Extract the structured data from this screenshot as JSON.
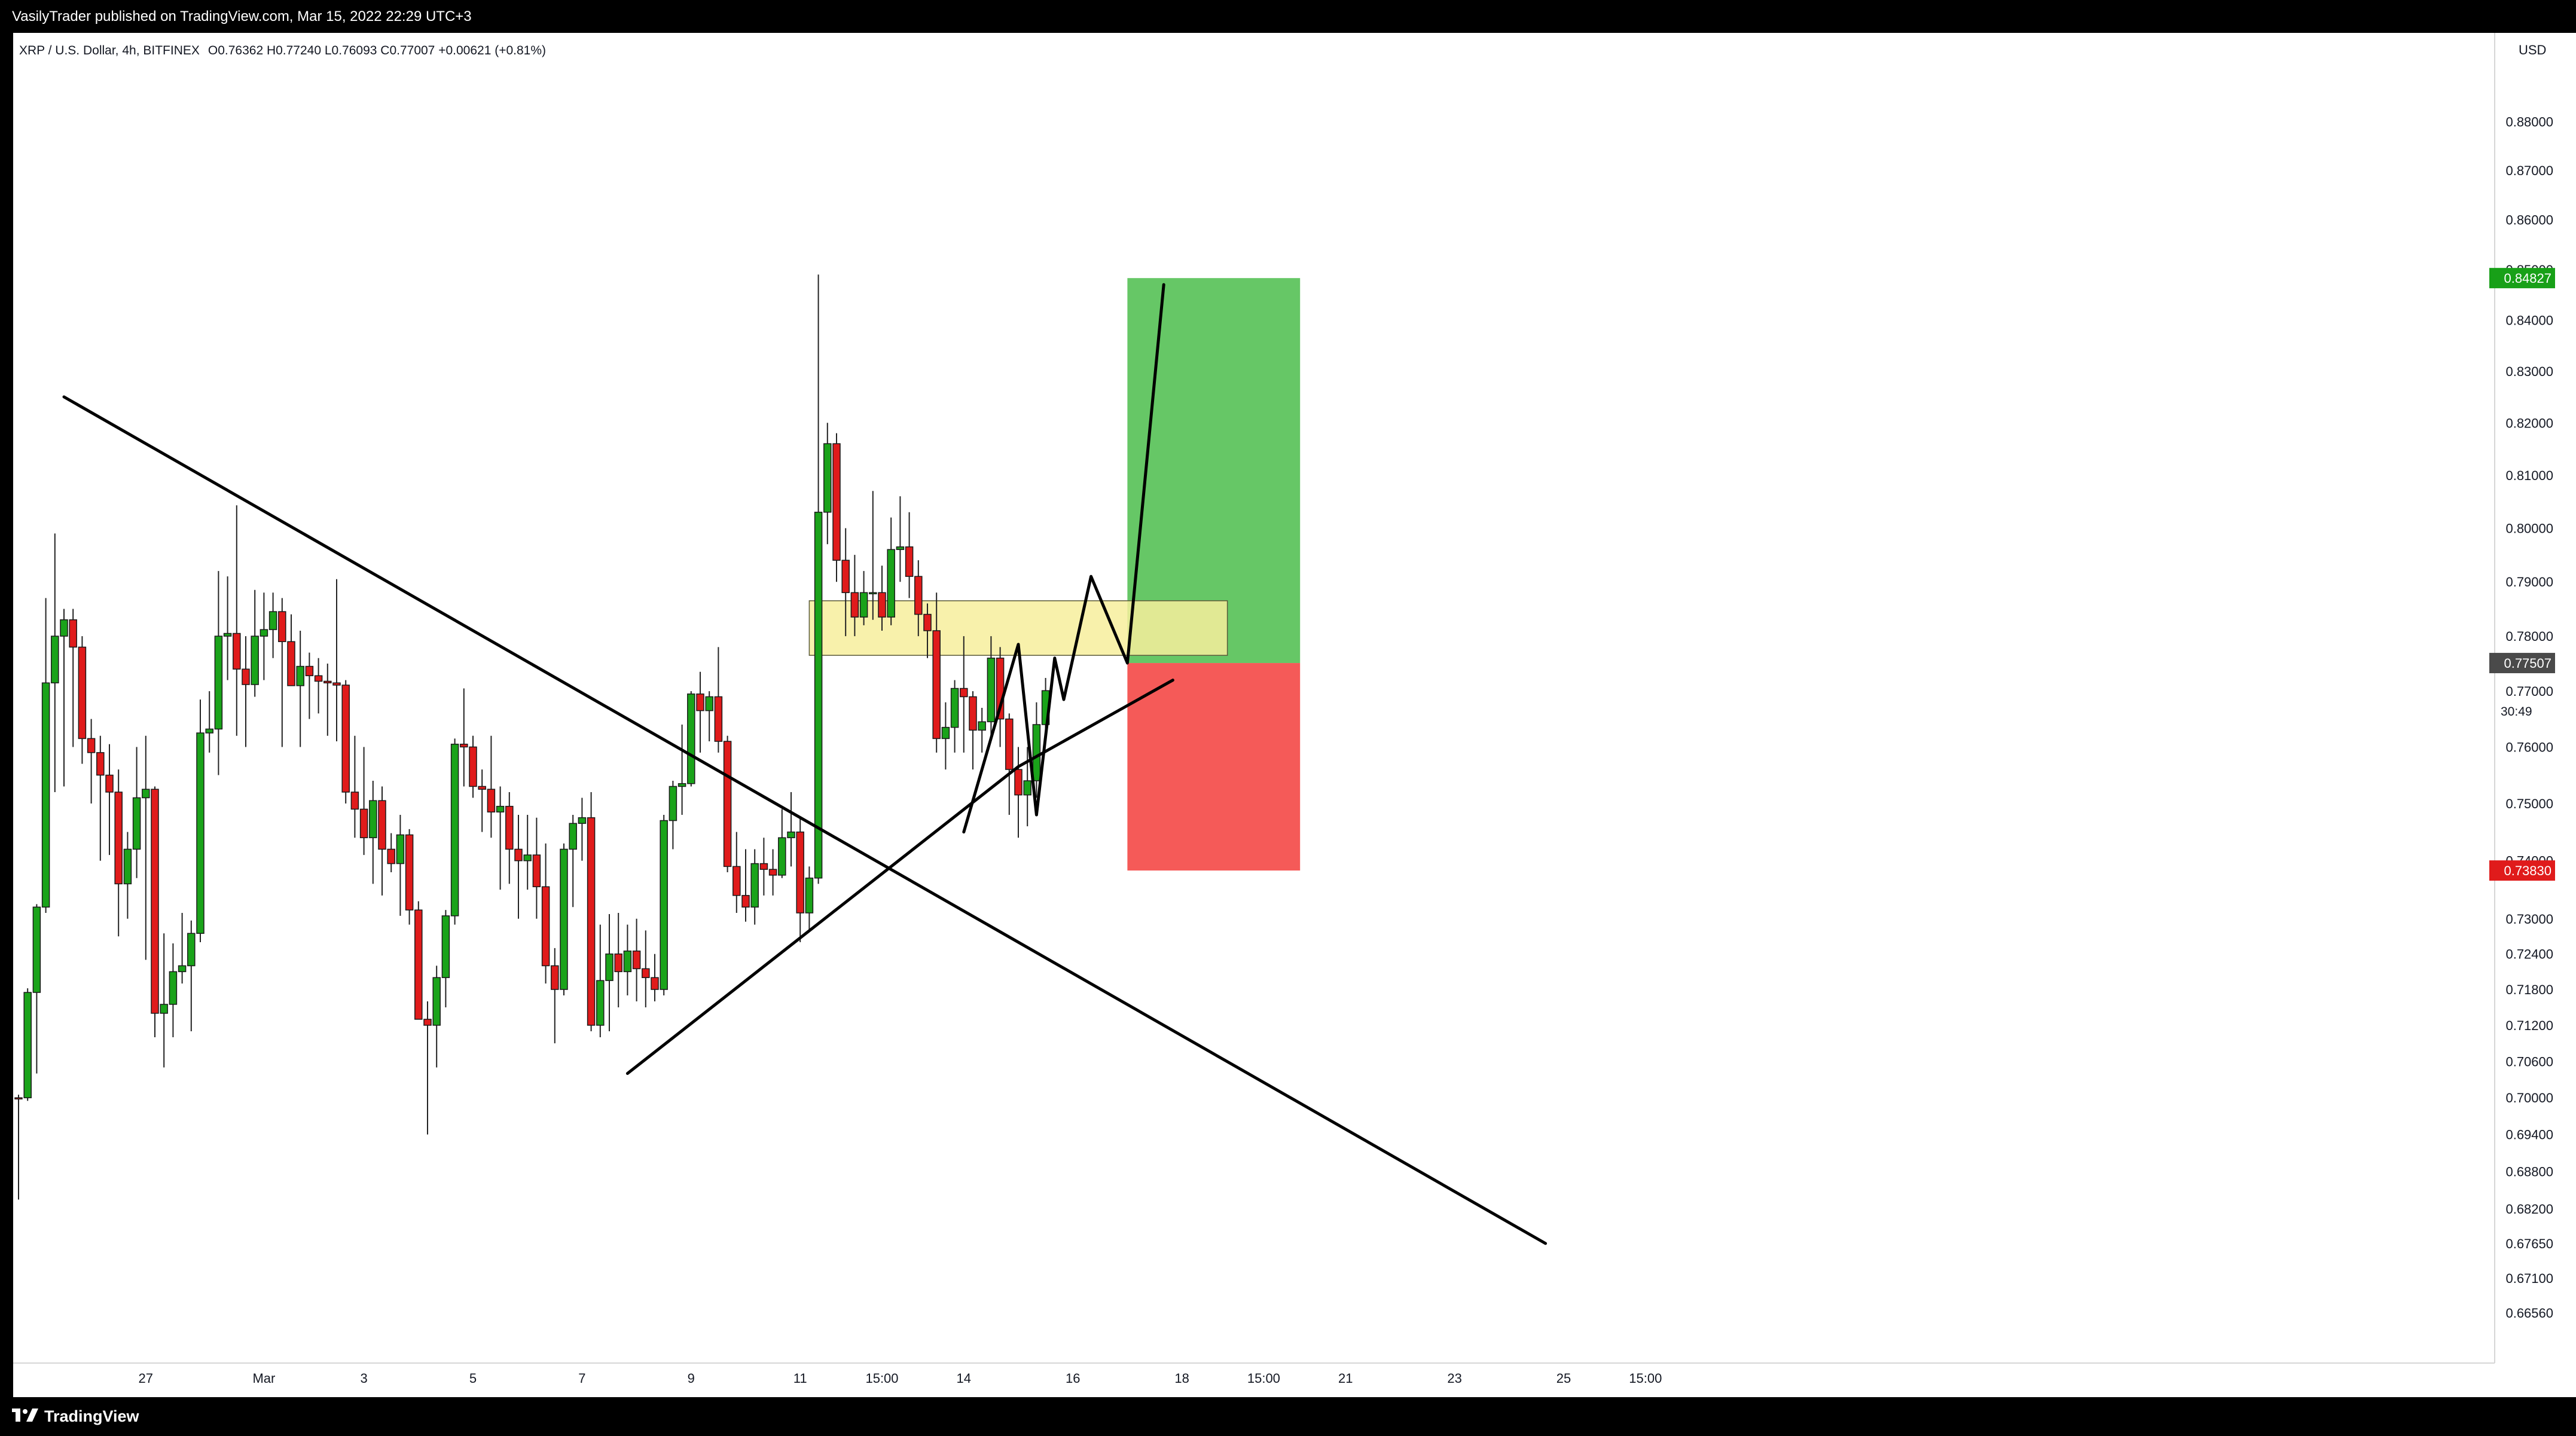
{
  "header": {
    "published_text": "VasilyTrader published on TradingView.com, Mar 15, 2022 22:29 UTC+3"
  },
  "footer": {
    "logo_text": "TradingView"
  },
  "chart_data": {
    "type": "candlestick",
    "title": "XRP / U.S. Dollar, 4h, BITFINEX",
    "ohlc_legend": "O0.76362  H0.77240  L0.76093  C0.77007  +0.00621 (+0.81%)",
    "currency_label": "USD",
    "y_scale": "log",
    "ylim": [
      0.6601,
      0.8956
    ],
    "y_ticks": [
      "0.88000",
      "0.87000",
      "0.86000",
      "0.85000",
      "0.84000",
      "0.83000",
      "0.82000",
      "0.81000",
      "0.80000",
      "0.79000",
      "0.78000",
      "0.77000",
      "0.76000",
      "0.75000",
      "0.74000",
      "0.73000",
      "0.72400",
      "0.71800",
      "0.71200",
      "0.70600",
      "0.70000",
      "0.69400",
      "0.68800",
      "0.68200",
      "0.67650",
      "0.67100",
      "0.66560"
    ],
    "x_ticks": [
      "27",
      "Mar",
      "3",
      "5",
      "7",
      "9",
      "11",
      "15:00",
      "14",
      "16",
      "18",
      "15:00",
      "21",
      "23",
      "25",
      "15:00"
    ],
    "price_labels": {
      "target": {
        "text": "0.84827",
        "color": "#089981"
      },
      "current": {
        "text": "0.77507",
        "color": "#4a4a4a"
      },
      "countdown": "30:49",
      "stop": {
        "text": "0.73830",
        "color": "#e0201a"
      }
    },
    "colors": {
      "up": "#089981",
      "down": "#f23645",
      "up_fill": "#1aa31a",
      "down_fill": "#e01b1b",
      "profit_zone": "#66c766",
      "loss_zone": "#f55a58",
      "demand_zone": "#f7ef9c"
    },
    "candles": [
      {
        "o": 0.7,
        "h": 0.7005,
        "l": 0.6835,
        "c": 0.6998
      },
      {
        "o": 0.7,
        "h": 0.7182,
        "l": 0.6995,
        "c": 0.7175
      },
      {
        "o": 0.7175,
        "h": 0.7325,
        "l": 0.704,
        "c": 0.732
      },
      {
        "o": 0.732,
        "h": 0.787,
        "l": 0.731,
        "c": 0.7715
      },
      {
        "o": 0.7715,
        "h": 0.799,
        "l": 0.752,
        "c": 0.78
      },
      {
        "o": 0.78,
        "h": 0.785,
        "l": 0.753,
        "c": 0.783
      },
      {
        "o": 0.783,
        "h": 0.785,
        "l": 0.76,
        "c": 0.778
      },
      {
        "o": 0.778,
        "h": 0.78,
        "l": 0.757,
        "c": 0.7615
      },
      {
        "o": 0.7615,
        "h": 0.765,
        "l": 0.75,
        "c": 0.759
      },
      {
        "o": 0.759,
        "h": 0.762,
        "l": 0.74,
        "c": 0.755
      },
      {
        "o": 0.755,
        "h": 0.7605,
        "l": 0.741,
        "c": 0.752
      },
      {
        "o": 0.752,
        "h": 0.756,
        "l": 0.727,
        "c": 0.736
      },
      {
        "o": 0.736,
        "h": 0.745,
        "l": 0.73,
        "c": 0.742
      },
      {
        "o": 0.742,
        "h": 0.76,
        "l": 0.737,
        "c": 0.751
      },
      {
        "o": 0.751,
        "h": 0.762,
        "l": 0.723,
        "c": 0.7525
      },
      {
        "o": 0.7525,
        "h": 0.753,
        "l": 0.71,
        "c": 0.714
      },
      {
        "o": 0.714,
        "h": 0.7275,
        "l": 0.705,
        "c": 0.7155
      },
      {
        "o": 0.7155,
        "h": 0.7258,
        "l": 0.71,
        "c": 0.721
      },
      {
        "o": 0.721,
        "h": 0.731,
        "l": 0.719,
        "c": 0.722
      },
      {
        "o": 0.722,
        "h": 0.7297,
        "l": 0.711,
        "c": 0.7275
      },
      {
        "o": 0.7275,
        "h": 0.7685,
        "l": 0.726,
        "c": 0.7625
      },
      {
        "o": 0.7625,
        "h": 0.77,
        "l": 0.759,
        "c": 0.7632
      },
      {
        "o": 0.7632,
        "h": 0.792,
        "l": 0.755,
        "c": 0.78
      },
      {
        "o": 0.78,
        "h": 0.791,
        "l": 0.772,
        "c": 0.7805
      },
      {
        "o": 0.7805,
        "h": 0.8043,
        "l": 0.762,
        "c": 0.774
      },
      {
        "o": 0.774,
        "h": 0.78,
        "l": 0.76,
        "c": 0.7712
      },
      {
        "o": 0.7712,
        "h": 0.7885,
        "l": 0.769,
        "c": 0.78
      },
      {
        "o": 0.78,
        "h": 0.788,
        "l": 0.772,
        "c": 0.7812
      },
      {
        "o": 0.7812,
        "h": 0.788,
        "l": 0.776,
        "c": 0.7845
      },
      {
        "o": 0.7845,
        "h": 0.787,
        "l": 0.76,
        "c": 0.779
      },
      {
        "o": 0.779,
        "h": 0.784,
        "l": 0.772,
        "c": 0.771
      },
      {
        "o": 0.771,
        "h": 0.781,
        "l": 0.76,
        "c": 0.7745
      },
      {
        "o": 0.7745,
        "h": 0.777,
        "l": 0.765,
        "c": 0.7728
      },
      {
        "o": 0.7728,
        "h": 0.776,
        "l": 0.766,
        "c": 0.7718
      },
      {
        "o": 0.7718,
        "h": 0.775,
        "l": 0.762,
        "c": 0.7715
      },
      {
        "o": 0.7715,
        "h": 0.7905,
        "l": 0.761,
        "c": 0.7711
      },
      {
        "o": 0.7711,
        "h": 0.772,
        "l": 0.75,
        "c": 0.752
      },
      {
        "o": 0.752,
        "h": 0.762,
        "l": 0.744,
        "c": 0.749
      },
      {
        "o": 0.749,
        "h": 0.76,
        "l": 0.741,
        "c": 0.744
      },
      {
        "o": 0.744,
        "h": 0.754,
        "l": 0.736,
        "c": 0.7505
      },
      {
        "o": 0.7505,
        "h": 0.753,
        "l": 0.734,
        "c": 0.742
      },
      {
        "o": 0.742,
        "h": 0.7448,
        "l": 0.738,
        "c": 0.7395
      },
      {
        "o": 0.7395,
        "h": 0.748,
        "l": 0.7305,
        "c": 0.7445
      },
      {
        "o": 0.7445,
        "h": 0.7455,
        "l": 0.729,
        "c": 0.7315
      },
      {
        "o": 0.7315,
        "h": 0.733,
        "l": 0.713,
        "c": 0.713
      },
      {
        "o": 0.713,
        "h": 0.716,
        "l": 0.694,
        "c": 0.712
      },
      {
        "o": 0.712,
        "h": 0.722,
        "l": 0.705,
        "c": 0.72
      },
      {
        "o": 0.72,
        "h": 0.7315,
        "l": 0.715,
        "c": 0.7305
      },
      {
        "o": 0.7305,
        "h": 0.7615,
        "l": 0.729,
        "c": 0.7605
      },
      {
        "o": 0.7605,
        "h": 0.7705,
        "l": 0.753,
        "c": 0.76
      },
      {
        "o": 0.76,
        "h": 0.762,
        "l": 0.751,
        "c": 0.753
      },
      {
        "o": 0.753,
        "h": 0.756,
        "l": 0.745,
        "c": 0.7525
      },
      {
        "o": 0.7525,
        "h": 0.762,
        "l": 0.744,
        "c": 0.7485
      },
      {
        "o": 0.7485,
        "h": 0.753,
        "l": 0.735,
        "c": 0.7495
      },
      {
        "o": 0.7495,
        "h": 0.752,
        "l": 0.736,
        "c": 0.742
      },
      {
        "o": 0.742,
        "h": 0.748,
        "l": 0.73,
        "c": 0.74
      },
      {
        "o": 0.74,
        "h": 0.748,
        "l": 0.735,
        "c": 0.741
      },
      {
        "o": 0.741,
        "h": 0.7475,
        "l": 0.73,
        "c": 0.7355
      },
      {
        "o": 0.7355,
        "h": 0.743,
        "l": 0.719,
        "c": 0.722
      },
      {
        "o": 0.722,
        "h": 0.725,
        "l": 0.709,
        "c": 0.718
      },
      {
        "o": 0.718,
        "h": 0.743,
        "l": 0.717,
        "c": 0.742
      },
      {
        "o": 0.742,
        "h": 0.748,
        "l": 0.732,
        "c": 0.7465
      },
      {
        "o": 0.7465,
        "h": 0.751,
        "l": 0.74,
        "c": 0.7475
      },
      {
        "o": 0.7475,
        "h": 0.752,
        "l": 0.711,
        "c": 0.712
      },
      {
        "o": 0.712,
        "h": 0.729,
        "l": 0.71,
        "c": 0.7195
      },
      {
        "o": 0.7195,
        "h": 0.7308,
        "l": 0.711,
        "c": 0.724
      },
      {
        "o": 0.724,
        "h": 0.731,
        "l": 0.715,
        "c": 0.721
      },
      {
        "o": 0.721,
        "h": 0.729,
        "l": 0.717,
        "c": 0.7245
      },
      {
        "o": 0.7245,
        "h": 0.73,
        "l": 0.716,
        "c": 0.7215
      },
      {
        "o": 0.7215,
        "h": 0.728,
        "l": 0.715,
        "c": 0.72
      },
      {
        "o": 0.72,
        "h": 0.724,
        "l": 0.716,
        "c": 0.718
      },
      {
        "o": 0.718,
        "h": 0.748,
        "l": 0.717,
        "c": 0.747
      },
      {
        "o": 0.747,
        "h": 0.754,
        "l": 0.742,
        "c": 0.753
      },
      {
        "o": 0.753,
        "h": 0.764,
        "l": 0.748,
        "c": 0.7535
      },
      {
        "o": 0.7535,
        "h": 0.77,
        "l": 0.753,
        "c": 0.7695
      },
      {
        "o": 0.7695,
        "h": 0.7735,
        "l": 0.759,
        "c": 0.7665
      },
      {
        "o": 0.7665,
        "h": 0.77,
        "l": 0.761,
        "c": 0.769
      },
      {
        "o": 0.769,
        "h": 0.778,
        "l": 0.759,
        "c": 0.761
      },
      {
        "o": 0.761,
        "h": 0.762,
        "l": 0.738,
        "c": 0.739
      },
      {
        "o": 0.739,
        "h": 0.745,
        "l": 0.731,
        "c": 0.734
      },
      {
        "o": 0.734,
        "h": 0.742,
        "l": 0.7295,
        "c": 0.732
      },
      {
        "o": 0.732,
        "h": 0.742,
        "l": 0.729,
        "c": 0.7395
      },
      {
        "o": 0.7395,
        "h": 0.744,
        "l": 0.734,
        "c": 0.7385
      },
      {
        "o": 0.7385,
        "h": 0.742,
        "l": 0.734,
        "c": 0.7375
      },
      {
        "o": 0.7375,
        "h": 0.749,
        "l": 0.737,
        "c": 0.744
      },
      {
        "o": 0.744,
        "h": 0.752,
        "l": 0.739,
        "c": 0.745
      },
      {
        "o": 0.745,
        "h": 0.7475,
        "l": 0.726,
        "c": 0.731
      },
      {
        "o": 0.731,
        "h": 0.739,
        "l": 0.728,
        "c": 0.737
      },
      {
        "o": 0.737,
        "h": 0.849,
        "l": 0.736,
        "c": 0.803
      },
      {
        "o": 0.803,
        "h": 0.82,
        "l": 0.797,
        "c": 0.816
      },
      {
        "o": 0.816,
        "h": 0.818,
        "l": 0.79,
        "c": 0.794
      },
      {
        "o": 0.794,
        "h": 0.8,
        "l": 0.78,
        "c": 0.788
      },
      {
        "o": 0.788,
        "h": 0.795,
        "l": 0.78,
        "c": 0.7835
      },
      {
        "o": 0.7835,
        "h": 0.792,
        "l": 0.782,
        "c": 0.788
      },
      {
        "o": 0.788,
        "h": 0.807,
        "l": 0.783,
        "c": 0.788
      },
      {
        "o": 0.788,
        "h": 0.793,
        "l": 0.781,
        "c": 0.7835
      },
      {
        "o": 0.7835,
        "h": 0.802,
        "l": 0.782,
        "c": 0.796
      },
      {
        "o": 0.796,
        "h": 0.806,
        "l": 0.79,
        "c": 0.7965
      },
      {
        "o": 0.7965,
        "h": 0.803,
        "l": 0.787,
        "c": 0.791
      },
      {
        "o": 0.791,
        "h": 0.794,
        "l": 0.78,
        "c": 0.784
      },
      {
        "o": 0.784,
        "h": 0.786,
        "l": 0.776,
        "c": 0.781
      },
      {
        "o": 0.781,
        "h": 0.788,
        "l": 0.759,
        "c": 0.7615
      },
      {
        "o": 0.7615,
        "h": 0.768,
        "l": 0.756,
        "c": 0.7635
      },
      {
        "o": 0.7635,
        "h": 0.772,
        "l": 0.759,
        "c": 0.7705
      },
      {
        "o": 0.7705,
        "h": 0.78,
        "l": 0.759,
        "c": 0.769
      },
      {
        "o": 0.769,
        "h": 0.77,
        "l": 0.756,
        "c": 0.763
      },
      {
        "o": 0.763,
        "h": 0.767,
        "l": 0.759,
        "c": 0.7645
      },
      {
        "o": 0.7645,
        "h": 0.78,
        "l": 0.762,
        "c": 0.776
      },
      {
        "o": 0.776,
        "h": 0.778,
        "l": 0.76,
        "c": 0.765
      },
      {
        "o": 0.765,
        "h": 0.766,
        "l": 0.748,
        "c": 0.756
      },
      {
        "o": 0.756,
        "h": 0.76,
        "l": 0.744,
        "c": 0.7515
      },
      {
        "o": 0.7515,
        "h": 0.76,
        "l": 0.746,
        "c": 0.754
      },
      {
        "o": 0.754,
        "h": 0.768,
        "l": 0.751,
        "c": 0.764
      },
      {
        "o": 0.764,
        "h": 0.7724,
        "l": 0.7609,
        "c": 0.7701
      }
    ],
    "drawings": {
      "descending_trendline": [
        [
          "Feb 25 09:00",
          0.825
        ],
        [
          "Mar 24 13:00",
          0.6765
        ]
      ],
      "ascending_trendline": [
        [
          "Mar 7 17:00",
          0.704
        ],
        [
          "Mar 14 21:00",
          0.7565
        ]
      ],
      "ascending_trendline_extension": [
        [
          "Mar 14 21:00",
          0.7565
        ],
        [
          "Mar 17 17:00",
          0.772
        ]
      ],
      "demand_zone": {
        "from": "Mar 11 01:00",
        "to": "Mar 18 17:00",
        "top": 0.7865,
        "bottom": 0.7765
      },
      "long_position": {
        "from": "Mar 16 21:00",
        "to": "Mar 20 01:00",
        "entry": 0.7751,
        "target": 0.8483,
        "stop": 0.7383
      },
      "projection_path": [
        [
          "Mar 13 21:00",
          0.745
        ],
        [
          "Mar 14 21:00",
          0.7785
        ],
        [
          "Mar 15 05:00",
          0.748
        ],
        [
          "Mar 15 13:00",
          0.776
        ],
        [
          "Mar 15 17:00",
          0.7685
        ],
        [
          "Mar 16 05:00",
          0.791
        ],
        [
          "Mar 16 21:00",
          0.7751
        ],
        [
          "Mar 17 13:00",
          0.847
        ]
      ]
    }
  }
}
